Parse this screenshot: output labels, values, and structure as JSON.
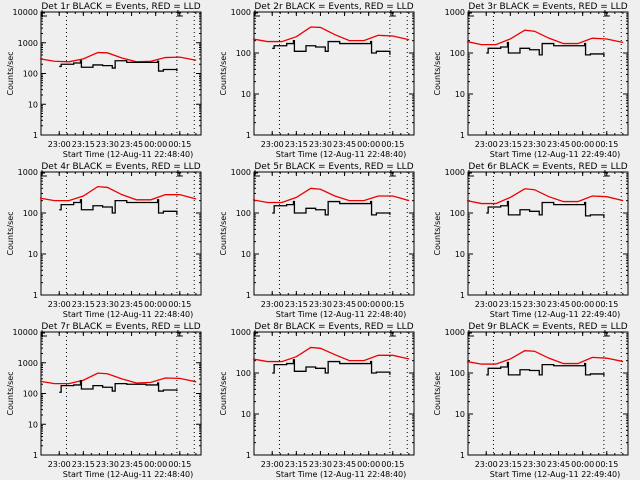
{
  "figure": {
    "background": "#efefef",
    "event_color": "#000000",
    "lld_color": "#ee0000"
  },
  "chart_data": [
    {
      "type": "line",
      "title": "Det 1r BLACK = Events, RED = LLD",
      "xlabel": "Start Time (12-Aug-11 22:48:40)",
      "ylabel": "Counts/sec",
      "yscale": "log",
      "ylim": [
        1,
        10000
      ],
      "yticks": [
        "1",
        "10",
        "100",
        "1000",
        "10000"
      ],
      "xticks": [
        "23:00",
        "23:15",
        "23:30",
        "23:45",
        "00:00",
        "00:15"
      ],
      "lld": [
        [
          22.8,
          300
        ],
        [
          22.95,
          250
        ],
        [
          23.1,
          240
        ],
        [
          23.25,
          300
        ],
        [
          23.4,
          480
        ],
        [
          23.5,
          470
        ],
        [
          23.65,
          320
        ],
        [
          23.8,
          240
        ],
        [
          23.95,
          250
        ],
        [
          24.1,
          330
        ],
        [
          24.25,
          340
        ],
        [
          24.42,
          270
        ]
      ],
      "events": [
        [
          23.0,
          170
        ],
        [
          23.02,
          200
        ],
        [
          23.15,
          220
        ],
        [
          23.22,
          260
        ],
        [
          23.23,
          160
        ],
        [
          23.35,
          190
        ],
        [
          23.45,
          180
        ],
        [
          23.55,
          150
        ],
        [
          23.58,
          260
        ],
        [
          23.7,
          230
        ],
        [
          23.9,
          230
        ],
        [
          24.02,
          250
        ],
        [
          24.03,
          120
        ],
        [
          24.08,
          135
        ],
        [
          24.22,
          120
        ]
      ]
    },
    {
      "type": "line",
      "title": "Det 2r BLACK = Events, RED = LLD",
      "xlabel": "Start Time (12-Aug-11 22:48:40)",
      "ylabel": "Counts/sec",
      "yscale": "log",
      "ylim": [
        1,
        1000
      ],
      "yticks": [
        "1",
        "10",
        "100",
        "1000"
      ],
      "xticks": [
        "23:00",
        "23:15",
        "23:30",
        "23:45",
        "00:00",
        "00:15"
      ],
      "lld": [
        [
          22.8,
          220
        ],
        [
          22.95,
          190
        ],
        [
          23.1,
          190
        ],
        [
          23.25,
          250
        ],
        [
          23.4,
          430
        ],
        [
          23.5,
          420
        ],
        [
          23.65,
          280
        ],
        [
          23.8,
          200
        ],
        [
          23.95,
          200
        ],
        [
          24.1,
          270
        ],
        [
          24.25,
          260
        ],
        [
          24.42,
          210
        ]
      ],
      "events": [
        [
          23.0,
          130
        ],
        [
          23.02,
          150
        ],
        [
          23.15,
          170
        ],
        [
          23.22,
          200
        ],
        [
          23.23,
          110
        ],
        [
          23.35,
          150
        ],
        [
          23.45,
          140
        ],
        [
          23.55,
          110
        ],
        [
          23.58,
          190
        ],
        [
          23.7,
          170
        ],
        [
          23.9,
          170
        ],
        [
          24.02,
          190
        ],
        [
          24.03,
          100
        ],
        [
          24.08,
          110
        ],
        [
          24.22,
          90
        ]
      ]
    },
    {
      "type": "line",
      "title": "Det 3r BLACK = Events, RED = LLD",
      "xlabel": "Start Time (12-Aug-11 22:49:40)",
      "ylabel": "Counts/sec",
      "yscale": "log",
      "ylim": [
        1,
        1000
      ],
      "yticks": [
        "1",
        "10",
        "100",
        "1000"
      ],
      "xticks": [
        "23:00",
        "23:15",
        "23:30",
        "23:45",
        "00:00",
        "00:15"
      ],
      "lld": [
        [
          22.8,
          190
        ],
        [
          22.95,
          160
        ],
        [
          23.1,
          160
        ],
        [
          23.25,
          220
        ],
        [
          23.4,
          360
        ],
        [
          23.5,
          340
        ],
        [
          23.65,
          230
        ],
        [
          23.8,
          170
        ],
        [
          23.95,
          170
        ],
        [
          24.1,
          230
        ],
        [
          24.25,
          220
        ],
        [
          24.42,
          180
        ]
      ],
      "events": [
        [
          23.0,
          100
        ],
        [
          23.02,
          130
        ],
        [
          23.15,
          140
        ],
        [
          23.22,
          180
        ],
        [
          23.23,
          100
        ],
        [
          23.35,
          130
        ],
        [
          23.45,
          120
        ],
        [
          23.55,
          90
        ],
        [
          23.58,
          170
        ],
        [
          23.7,
          150
        ],
        [
          23.9,
          150
        ],
        [
          24.02,
          170
        ],
        [
          24.03,
          90
        ],
        [
          24.08,
          95
        ],
        [
          24.22,
          80
        ]
      ]
    },
    {
      "type": "line",
      "title": "Det 4r BLACK = Events, RED = LLD",
      "xlabel": "Start Time (12-Aug-11 22:48:40)",
      "ylabel": "Counts/sec",
      "yscale": "log",
      "ylim": [
        1,
        1000
      ],
      "yticks": [
        "1",
        "10",
        "100",
        "1000"
      ],
      "xticks": [
        "23:00",
        "23:15",
        "23:30",
        "23:45",
        "00:00",
        "00:15"
      ],
      "lld": [
        [
          22.8,
          230
        ],
        [
          22.95,
          200
        ],
        [
          23.1,
          200
        ],
        [
          23.25,
          260
        ],
        [
          23.4,
          440
        ],
        [
          23.5,
          420
        ],
        [
          23.65,
          280
        ],
        [
          23.8,
          210
        ],
        [
          23.95,
          210
        ],
        [
          24.1,
          280
        ],
        [
          24.25,
          280
        ],
        [
          24.42,
          220
        ]
      ],
      "events": [
        [
          23.0,
          120
        ],
        [
          23.02,
          160
        ],
        [
          23.15,
          180
        ],
        [
          23.22,
          210
        ],
        [
          23.23,
          120
        ],
        [
          23.35,
          150
        ],
        [
          23.45,
          140
        ],
        [
          23.55,
          100
        ],
        [
          23.58,
          200
        ],
        [
          23.7,
          180
        ],
        [
          23.9,
          180
        ],
        [
          24.02,
          210
        ],
        [
          24.03,
          100
        ],
        [
          24.08,
          110
        ],
        [
          24.22,
          90
        ]
      ]
    },
    {
      "type": "line",
      "title": "Det 5r BLACK = Events, RED = LLD",
      "xlabel": "Start Time (12-Aug-11 22:48:40)",
      "ylabel": "Counts/sec",
      "yscale": "log",
      "ylim": [
        1,
        1000
      ],
      "yticks": [
        "1",
        "10",
        "100",
        "1000"
      ],
      "xticks": [
        "23:00",
        "23:15",
        "23:30",
        "23:45",
        "00:00",
        "00:15"
      ],
      "lld": [
        [
          22.8,
          210
        ],
        [
          22.95,
          180
        ],
        [
          23.1,
          180
        ],
        [
          23.25,
          240
        ],
        [
          23.4,
          400
        ],
        [
          23.5,
          380
        ],
        [
          23.65,
          260
        ],
        [
          23.8,
          200
        ],
        [
          23.95,
          200
        ],
        [
          24.1,
          260
        ],
        [
          24.25,
          260
        ],
        [
          24.42,
          200
        ]
      ],
      "events": [
        [
          23.0,
          100
        ],
        [
          23.02,
          150
        ],
        [
          23.15,
          160
        ],
        [
          23.22,
          190
        ],
        [
          23.23,
          100
        ],
        [
          23.35,
          130
        ],
        [
          23.45,
          120
        ],
        [
          23.55,
          90
        ],
        [
          23.58,
          190
        ],
        [
          23.7,
          170
        ],
        [
          23.9,
          170
        ],
        [
          24.02,
          190
        ],
        [
          24.03,
          90
        ],
        [
          24.08,
          100
        ],
        [
          24.22,
          90
        ]
      ]
    },
    {
      "type": "line",
      "title": "Det 6r BLACK = Events, RED = LLD",
      "xlabel": "Start Time (12-Aug-11 22:49:40)",
      "ylabel": "Counts/sec",
      "yscale": "log",
      "ylim": [
        1,
        1000
      ],
      "yticks": [
        "1",
        "10",
        "100",
        "1000"
      ],
      "xticks": [
        "23:00",
        "23:15",
        "23:30",
        "23:45",
        "00:00",
        "00:15"
      ],
      "lld": [
        [
          22.8,
          200
        ],
        [
          22.95,
          170
        ],
        [
          23.1,
          170
        ],
        [
          23.25,
          240
        ],
        [
          23.4,
          390
        ],
        [
          23.5,
          370
        ],
        [
          23.65,
          250
        ],
        [
          23.8,
          190
        ],
        [
          23.95,
          190
        ],
        [
          24.1,
          260
        ],
        [
          24.25,
          250
        ],
        [
          24.42,
          200
        ]
      ],
      "events": [
        [
          23.0,
          100
        ],
        [
          23.02,
          140
        ],
        [
          23.15,
          150
        ],
        [
          23.22,
          190
        ],
        [
          23.23,
          90
        ],
        [
          23.35,
          120
        ],
        [
          23.45,
          110
        ],
        [
          23.55,
          90
        ],
        [
          23.58,
          180
        ],
        [
          23.7,
          160
        ],
        [
          23.9,
          160
        ],
        [
          24.02,
          180
        ],
        [
          24.03,
          85
        ],
        [
          24.08,
          90
        ],
        [
          24.22,
          75
        ]
      ]
    },
    {
      "type": "line",
      "title": "Det 7r BLACK = Events, RED = LLD",
      "xlabel": "Start Time (12-Aug-11 22:48:40)",
      "ylabel": "Counts/sec",
      "yscale": "log",
      "ylim": [
        1,
        10000
      ],
      "yticks": [
        "1",
        "10",
        "100",
        "1000",
        "10000"
      ],
      "xticks": [
        "23:00",
        "23:15",
        "23:30",
        "23:45",
        "00:00",
        "00:15"
      ],
      "lld": [
        [
          22.8,
          250
        ],
        [
          22.95,
          210
        ],
        [
          23.1,
          210
        ],
        [
          23.25,
          270
        ],
        [
          23.4,
          460
        ],
        [
          23.5,
          440
        ],
        [
          23.65,
          300
        ],
        [
          23.8,
          220
        ],
        [
          23.95,
          230
        ],
        [
          24.1,
          320
        ],
        [
          24.25,
          310
        ],
        [
          24.42,
          240
        ]
      ],
      "events": [
        [
          23.0,
          110
        ],
        [
          23.02,
          180
        ],
        [
          23.15,
          190
        ],
        [
          23.22,
          260
        ],
        [
          23.23,
          140
        ],
        [
          23.35,
          180
        ],
        [
          23.45,
          160
        ],
        [
          23.55,
          120
        ],
        [
          23.58,
          210
        ],
        [
          23.7,
          200
        ],
        [
          23.9,
          190
        ],
        [
          24.02,
          220
        ],
        [
          24.03,
          120
        ],
        [
          24.08,
          130
        ],
        [
          24.22,
          120
        ]
      ]
    },
    {
      "type": "line",
      "title": "Det 8r BLACK = Events, RED = LLD",
      "xlabel": "Start Time (12-Aug-11 22:48:40)",
      "ylabel": "Counts/sec",
      "yscale": "log",
      "ylim": [
        1,
        1000
      ],
      "yticks": [
        "1",
        "10",
        "100",
        "1000"
      ],
      "xticks": [
        "23:00",
        "23:15",
        "23:30",
        "23:45",
        "00:00",
        "00:15"
      ],
      "lld": [
        [
          22.8,
          220
        ],
        [
          22.95,
          190
        ],
        [
          23.1,
          190
        ],
        [
          23.25,
          250
        ],
        [
          23.4,
          420
        ],
        [
          23.5,
          400
        ],
        [
          23.65,
          280
        ],
        [
          23.8,
          200
        ],
        [
          23.95,
          200
        ],
        [
          24.1,
          270
        ],
        [
          24.25,
          270
        ],
        [
          24.42,
          220
        ]
      ],
      "events": [
        [
          23.0,
          100
        ],
        [
          23.02,
          160
        ],
        [
          23.15,
          170
        ],
        [
          23.22,
          210
        ],
        [
          23.23,
          110
        ],
        [
          23.35,
          140
        ],
        [
          23.45,
          130
        ],
        [
          23.55,
          100
        ],
        [
          23.58,
          190
        ],
        [
          23.7,
          170
        ],
        [
          23.9,
          170
        ],
        [
          24.02,
          190
        ],
        [
          24.03,
          100
        ],
        [
          24.08,
          105
        ],
        [
          24.22,
          90
        ]
      ]
    },
    {
      "type": "line",
      "title": "Det 9r BLACK = Events, RED = LLD",
      "xlabel": "Start Time (12-Aug-11 22:49:40)",
      "ylabel": "Counts/sec",
      "yscale": "log",
      "ylim": [
        1,
        1000
      ],
      "yticks": [
        "1",
        "10",
        "100",
        "1000"
      ],
      "xticks": [
        "23:00",
        "23:15",
        "23:30",
        "23:45",
        "00:00",
        "00:15"
      ],
      "lld": [
        [
          22.8,
          190
        ],
        [
          22.95,
          165
        ],
        [
          23.1,
          165
        ],
        [
          23.25,
          220
        ],
        [
          23.4,
          350
        ],
        [
          23.5,
          340
        ],
        [
          23.65,
          230
        ],
        [
          23.8,
          170
        ],
        [
          23.95,
          170
        ],
        [
          24.1,
          240
        ],
        [
          24.25,
          230
        ],
        [
          24.42,
          190
        ]
      ],
      "events": [
        [
          23.0,
          90
        ],
        [
          23.02,
          130
        ],
        [
          23.15,
          140
        ],
        [
          23.22,
          180
        ],
        [
          23.23,
          90
        ],
        [
          23.35,
          120
        ],
        [
          23.45,
          115
        ],
        [
          23.55,
          90
        ],
        [
          23.58,
          160
        ],
        [
          23.7,
          150
        ],
        [
          23.9,
          150
        ],
        [
          24.02,
          170
        ],
        [
          24.03,
          90
        ],
        [
          24.08,
          95
        ],
        [
          24.22,
          85
        ]
      ]
    }
  ],
  "x_axis": {
    "xlim_hours": [
      22.811,
      24.47
    ],
    "xtick_hours": [
      23.0,
      23.25,
      23.5,
      23.75,
      24.0,
      24.25
    ],
    "dotted_lines_hours": [
      23.075,
      24.22,
      24.4
    ]
  }
}
